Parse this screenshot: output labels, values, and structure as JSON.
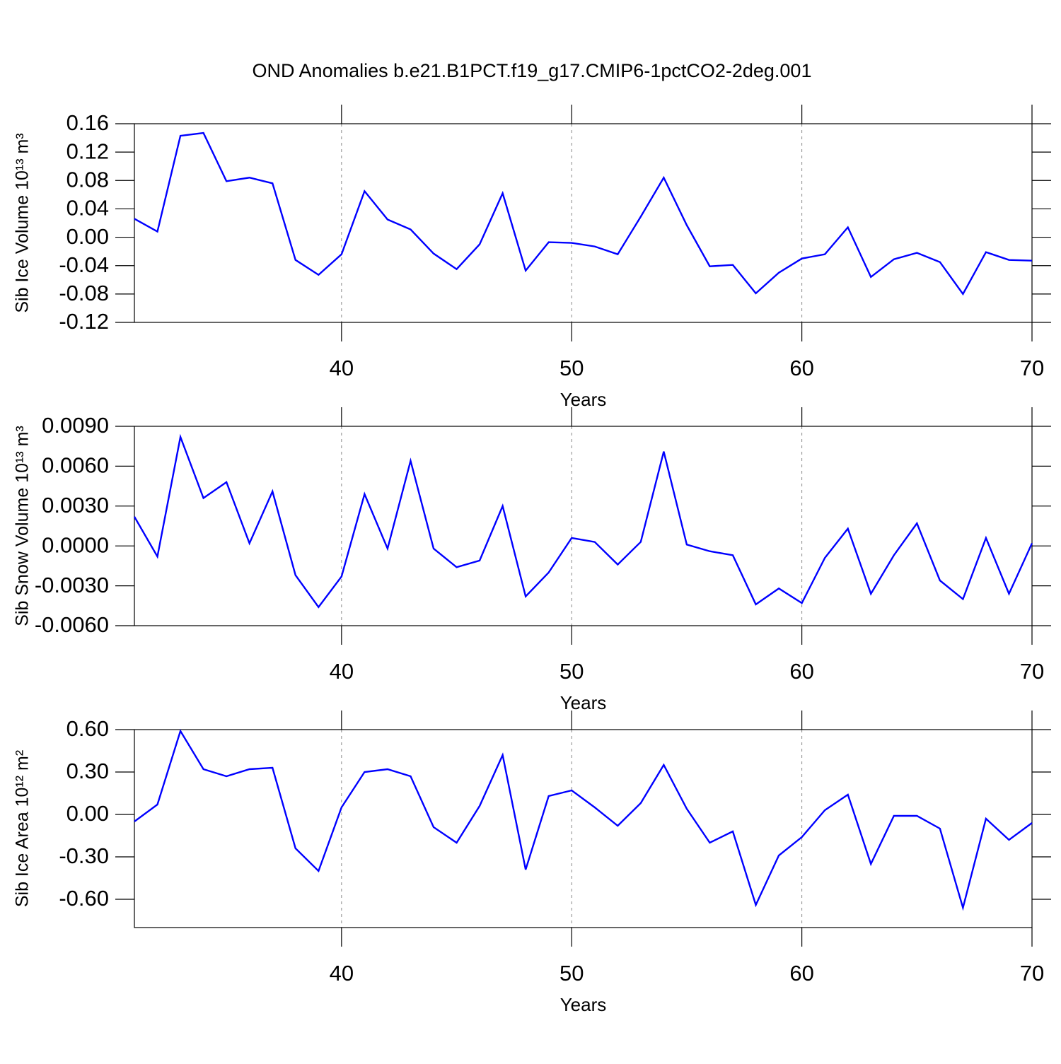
{
  "title": "OND Anomalies b.e21.B1PCT.f19_g17.CMIP6-1pctCO2-2deg.001",
  "chart_data": [
    {
      "type": "line",
      "ylabel": "Sib Ice Volume 10¹³ m³",
      "xlabel": "Years",
      "x": [
        31,
        32,
        33,
        34,
        35,
        36,
        37,
        38,
        39,
        40,
        41,
        42,
        43,
        44,
        45,
        46,
        47,
        48,
        49,
        50,
        51,
        52,
        53,
        54,
        55,
        56,
        57,
        58,
        59,
        60,
        61,
        62,
        63,
        64,
        65,
        66,
        67,
        68,
        69,
        70
      ],
      "values": [
        0.026,
        0.008,
        0.143,
        0.147,
        0.079,
        0.084,
        0.076,
        -0.032,
        -0.053,
        -0.024,
        0.065,
        0.025,
        0.011,
        -0.023,
        -0.045,
        -0.01,
        0.062,
        -0.047,
        -0.007,
        -0.008,
        -0.013,
        -0.024,
        0.029,
        0.084,
        0.017,
        -0.041,
        -0.039,
        -0.079,
        -0.05,
        -0.03,
        -0.024,
        0.014,
        -0.056,
        -0.031,
        -0.022,
        -0.035,
        -0.08,
        -0.021,
        -0.032,
        -0.033
      ],
      "color": "#0000ff",
      "xlim": [
        31,
        70
      ],
      "xticks": [
        40,
        50,
        60,
        70
      ],
      "ylim": [
        -0.12,
        0.16
      ],
      "yticks": [
        0.16,
        0.12,
        0.08,
        0.04,
        {
          "value": 0,
          "label": "0.00"
        },
        -0.04,
        -0.08,
        -0.12
      ],
      "grid": true
    },
    {
      "type": "line",
      "ylabel": "Sib Snow Volume 10¹³ m³",
      "xlabel": "Years",
      "x": [
        31,
        32,
        33,
        34,
        35,
        36,
        37,
        38,
        39,
        40,
        41,
        42,
        43,
        44,
        45,
        46,
        47,
        48,
        49,
        50,
        51,
        52,
        53,
        54,
        55,
        56,
        57,
        58,
        59,
        60,
        61,
        62,
        63,
        64,
        65,
        66,
        67,
        68,
        69,
        70
      ],
      "values": [
        0.0022,
        -0.0008,
        0.0082,
        0.0036,
        0.0048,
        0.0002,
        0.0041,
        -0.0022,
        -0.0046,
        -0.0023,
        0.0039,
        -0.0002,
        0.0064,
        -0.0002,
        -0.0016,
        -0.0011,
        0.003,
        -0.0038,
        -0.002,
        0.0006,
        0.0003,
        -0.0014,
        0.0003,
        0.0071,
        0.0001,
        -0.0004,
        -0.0007,
        -0.0044,
        -0.0032,
        -0.0043,
        -0.0009,
        0.0013,
        -0.0036,
        -0.0007,
        0.0017,
        -0.0026,
        -0.004,
        0.0006,
        -0.0036,
        0.0002
      ],
      "color": "#0000ff",
      "xlim": [
        31,
        70
      ],
      "xticks": [
        40,
        50,
        60,
        70
      ],
      "ylim": [
        -0.006,
        0.009
      ],
      "yticks": [
        {
          "value": 0.009,
          "label": "0.0090"
        },
        {
          "value": 0.006,
          "label": "0.0060"
        },
        {
          "value": 0.003,
          "label": "0.0030"
        },
        {
          "value": 0,
          "label": "0.0000"
        },
        {
          "value": -0.003,
          "label": "-0.0030"
        },
        {
          "value": -0.006,
          "label": "-0.0060"
        }
      ],
      "grid": true
    },
    {
      "type": "line",
      "ylabel": "Sib Ice Area 10¹² m²",
      "xlabel": "Years",
      "x": [
        31,
        32,
        33,
        34,
        35,
        36,
        37,
        38,
        39,
        40,
        41,
        42,
        43,
        44,
        45,
        46,
        47,
        48,
        49,
        50,
        51,
        52,
        53,
        54,
        55,
        56,
        57,
        58,
        59,
        60,
        61,
        62,
        63,
        64,
        65,
        66,
        67,
        68,
        69,
        70
      ],
      "values": [
        -0.05,
        0.07,
        0.59,
        0.32,
        0.27,
        0.32,
        0.33,
        -0.24,
        -0.4,
        0.05,
        0.3,
        0.32,
        0.27,
        -0.09,
        -0.2,
        0.06,
        0.42,
        -0.39,
        0.13,
        0.17,
        0.05,
        -0.08,
        0.08,
        0.35,
        0.04,
        -0.2,
        -0.12,
        -0.64,
        -0.29,
        -0.16,
        0.03,
        0.14,
        -0.35,
        -0.01,
        -0.01,
        -0.1,
        -0.66,
        -0.03,
        -0.18,
        -0.06
      ],
      "color": "#0000ff",
      "xlim": [
        31,
        70
      ],
      "xticks": [
        40,
        50,
        60,
        70
      ],
      "ylim": [
        -0.8,
        0.6
      ],
      "yticks": [
        {
          "value": 0.6,
          "label": "0.60"
        },
        {
          "value": 0.3,
          "label": "0.30"
        },
        {
          "value": 0,
          "label": "0.00"
        },
        {
          "value": -0.3,
          "label": "-0.30"
        },
        {
          "value": -0.6,
          "label": "-0.60"
        }
      ],
      "grid": true
    }
  ]
}
